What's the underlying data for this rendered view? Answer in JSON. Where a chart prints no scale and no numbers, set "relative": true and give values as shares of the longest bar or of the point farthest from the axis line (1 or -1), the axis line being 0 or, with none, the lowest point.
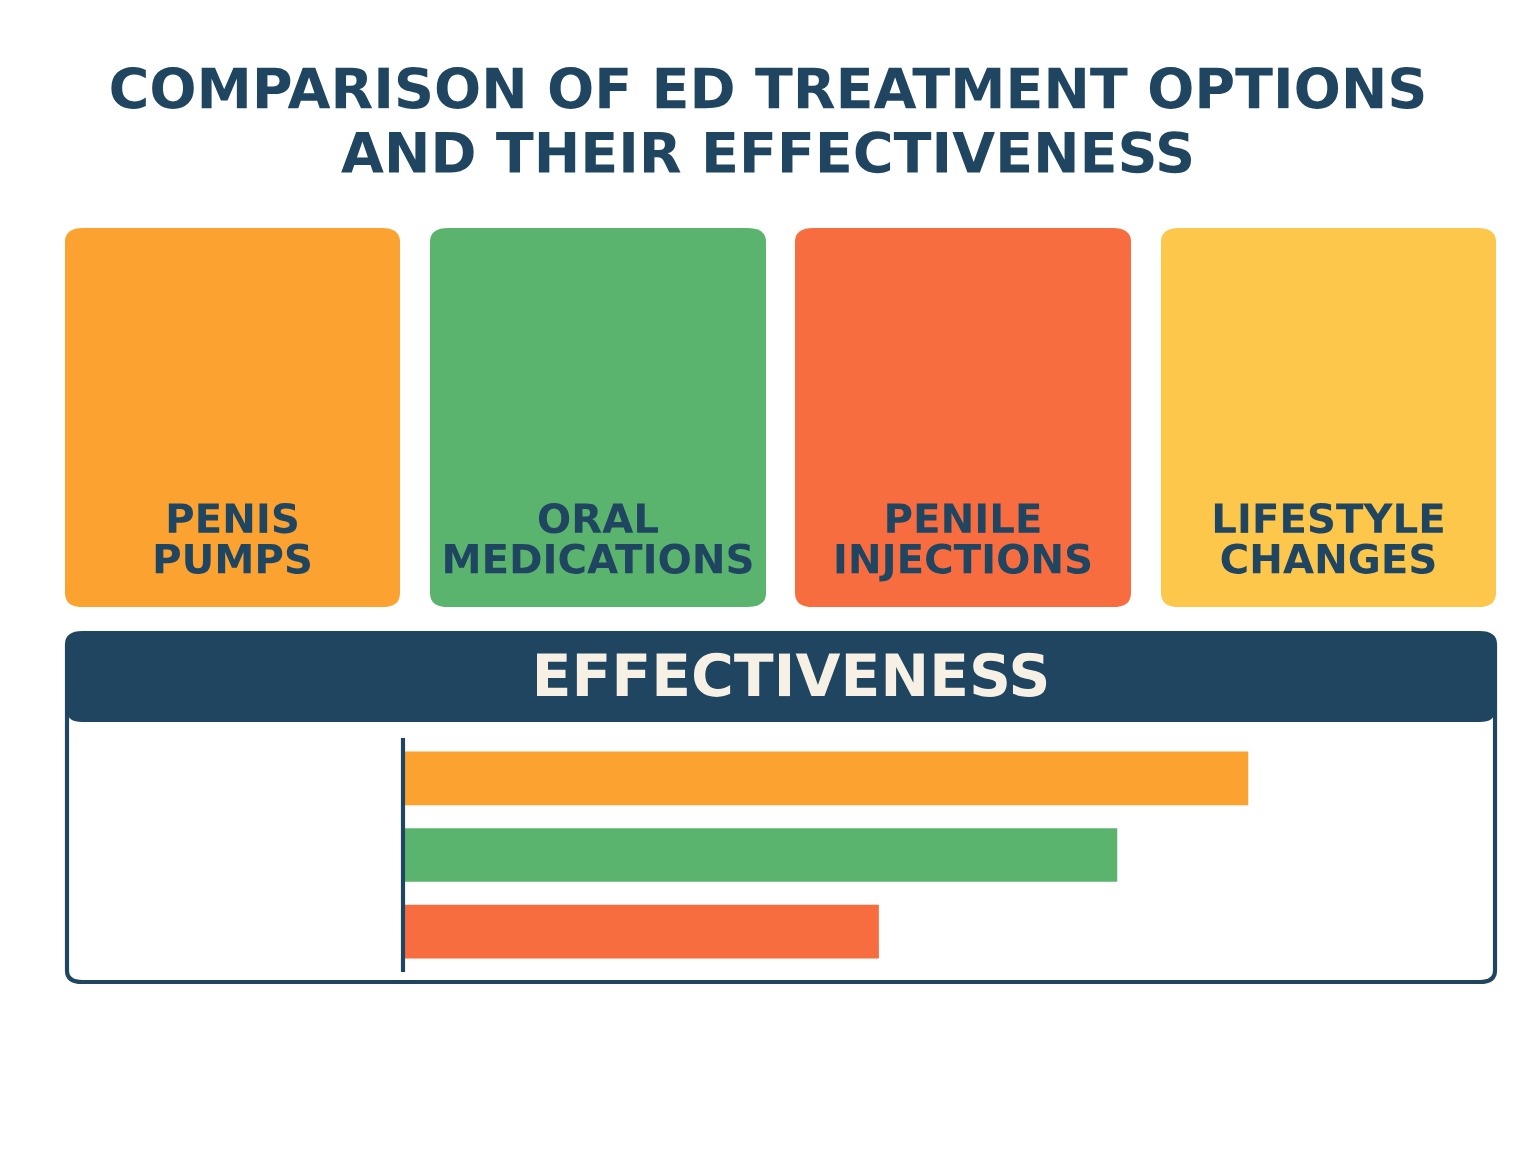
{
  "chart_data": {
    "type": "bar",
    "orientation": "horizontal",
    "relative": true,
    "title": "COMPARISON OF ED TREATMENT OPTIONS\nAND THEIR EFFECTIVENESS",
    "subtitle": "EFFECTIVENESS",
    "annotations": [
      "PENIS\nPUMPS",
      "ORAL\nMEDICATIONS",
      "PENILE\nINJECTIONS",
      "LIFESTYLE\nCHANGES"
    ],
    "categories": [
      null,
      null,
      null
    ],
    "values": [
      1,
      0.845,
      0.563
    ],
    "colors": [
      "#fba230",
      "#5ab46e",
      "#f76d40"
    ],
    "grid": false,
    "legend": false
  }
}
